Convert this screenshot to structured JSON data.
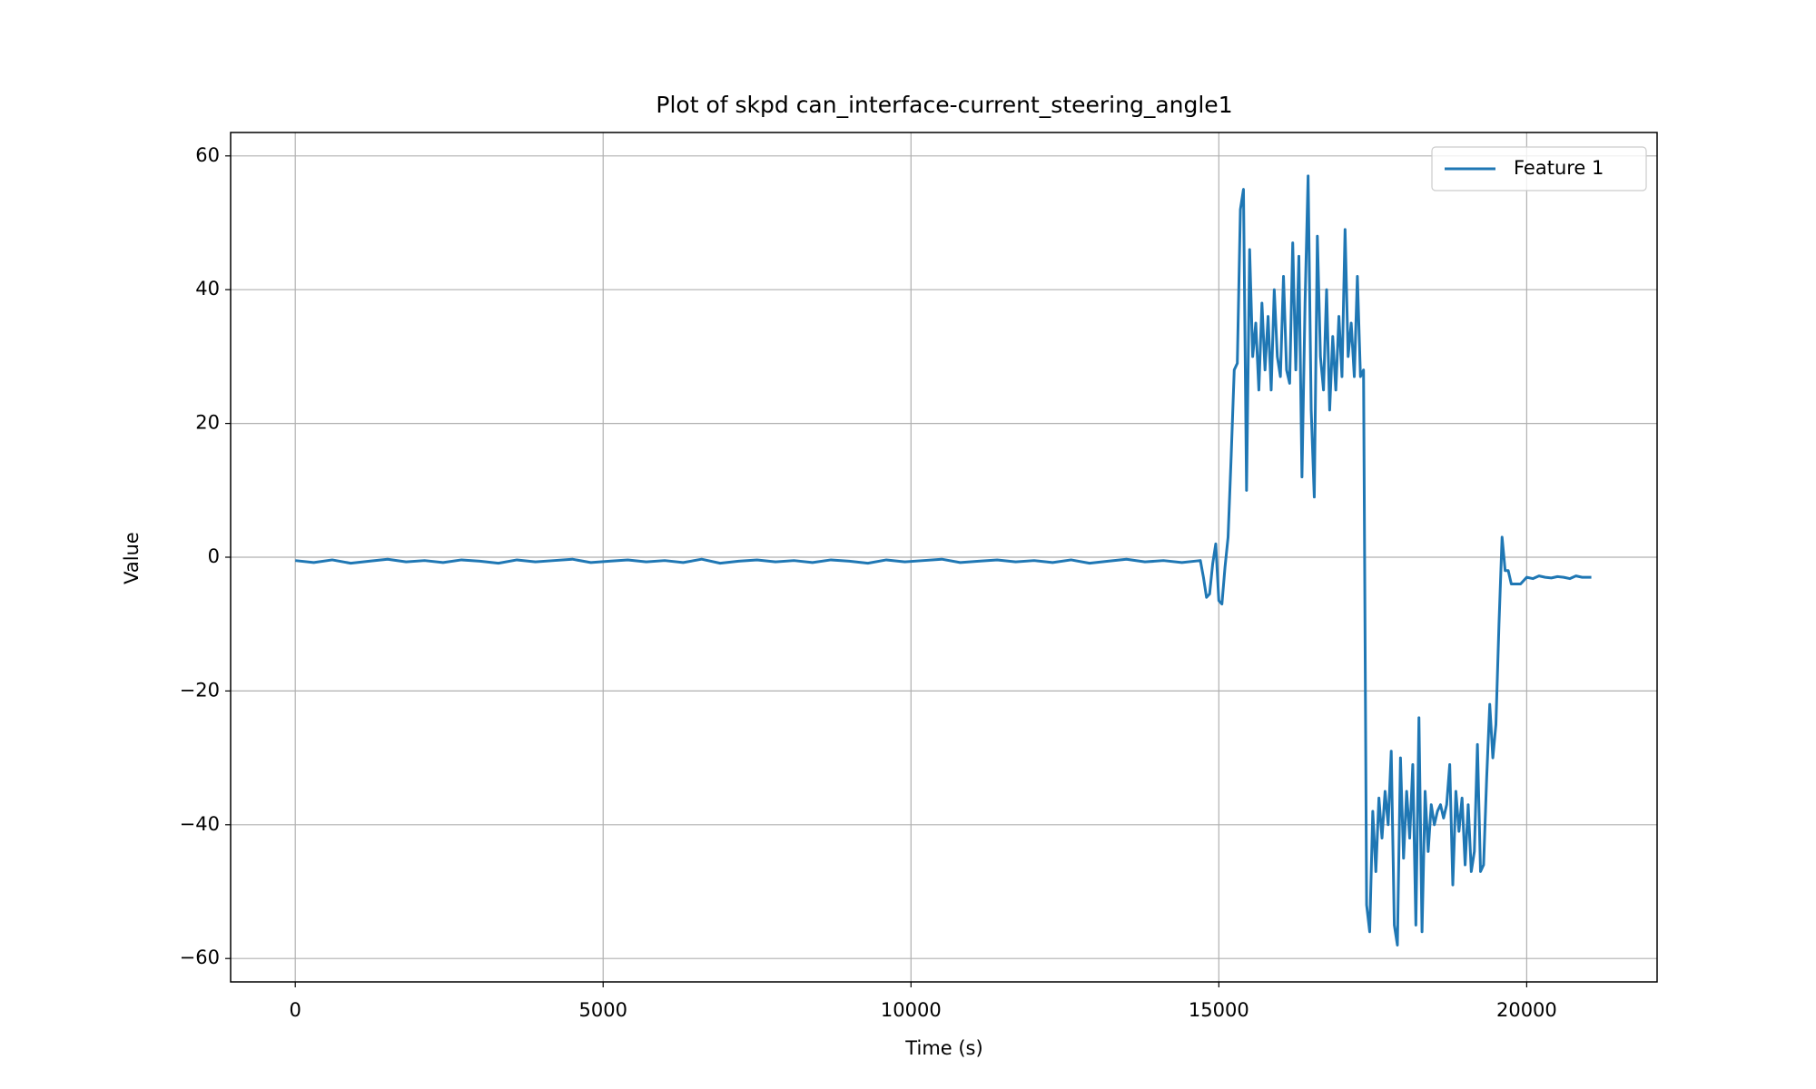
{
  "chart_data": {
    "type": "line",
    "title": "Plot of skpd can_interface-current_steering_angle1",
    "x_label": "Time (s)",
    "y_label": "Value",
    "x": [
      0,
      300,
      600,
      900,
      1200,
      1500,
      1800,
      2100,
      2400,
      2700,
      3000,
      3300,
      3600,
      3900,
      4200,
      4500,
      4800,
      5100,
      5400,
      5700,
      6000,
      6300,
      6600,
      6900,
      7200,
      7500,
      7800,
      8100,
      8400,
      8700,
      9000,
      9300,
      9600,
      9900,
      10200,
      10500,
      10800,
      11100,
      11400,
      11700,
      12000,
      12300,
      12600,
      12900,
      13200,
      13500,
      13800,
      14100,
      14400,
      14700,
      14750,
      14800,
      14850,
      14900,
      14950,
      15000,
      15050,
      15100,
      15150,
      15200,
      15250,
      15300,
      15350,
      15400,
      15450,
      15500,
      15550,
      15600,
      15650,
      15700,
      15750,
      15800,
      15850,
      15900,
      15950,
      16000,
      16050,
      16100,
      16150,
      16200,
      16250,
      16300,
      16350,
      16400,
      16450,
      16500,
      16550,
      16600,
      16650,
      16700,
      16750,
      16800,
      16850,
      16900,
      16950,
      17000,
      17050,
      17100,
      17150,
      17200,
      17250,
      17300,
      17350,
      17400,
      17450,
      17500,
      17550,
      17600,
      17650,
      17700,
      17750,
      17800,
      17850,
      17900,
      17950,
      18000,
      18050,
      18100,
      18150,
      18200,
      18250,
      18300,
      18350,
      18400,
      18450,
      18500,
      18550,
      18600,
      18650,
      18700,
      18750,
      18800,
      18850,
      18900,
      18950,
      19000,
      19050,
      19100,
      19150,
      19200,
      19250,
      19300,
      19350,
      19400,
      19450,
      19500,
      19550,
      19600,
      19650,
      19700,
      19750,
      19800,
      19900,
      20000,
      20100,
      20200,
      20300,
      20400,
      20500,
      20600,
      20700,
      20800,
      20900,
      21000,
      21050
    ],
    "series": [
      {
        "name": "Feature 1",
        "color": "#1f77b4",
        "values": [
          -0.5,
          -0.8,
          -0.4,
          -0.9,
          -0.6,
          -0.3,
          -0.7,
          -0.5,
          -0.8,
          -0.4,
          -0.6,
          -0.9,
          -0.4,
          -0.7,
          -0.5,
          -0.3,
          -0.8,
          -0.6,
          -0.4,
          -0.7,
          -0.5,
          -0.8,
          -0.3,
          -0.9,
          -0.6,
          -0.4,
          -0.7,
          -0.5,
          -0.8,
          -0.4,
          -0.6,
          -0.9,
          -0.4,
          -0.7,
          -0.5,
          -0.3,
          -0.8,
          -0.6,
          -0.4,
          -0.7,
          -0.5,
          -0.8,
          -0.4,
          -0.9,
          -0.6,
          -0.3,
          -0.7,
          -0.5,
          -0.8,
          -0.5,
          -3,
          -6,
          -5.5,
          -1,
          2,
          -6.5,
          -7,
          -1.5,
          3,
          15,
          28,
          29,
          52,
          55,
          10,
          46,
          30,
          35,
          25,
          38,
          28,
          36,
          25,
          40,
          30,
          27,
          42,
          28,
          26,
          47,
          28,
          45,
          12,
          38,
          57,
          22,
          9,
          48,
          30,
          25,
          40,
          22,
          33,
          25,
          36,
          27,
          49,
          30,
          35,
          27,
          42,
          27,
          28,
          -52,
          -56,
          -38,
          -47,
          -36,
          -42,
          -35,
          -40,
          -29,
          -55,
          -58,
          -30,
          -45,
          -35,
          -42,
          -31,
          -55,
          -24,
          -56,
          -35,
          -44,
          -37,
          -40,
          -38,
          -37,
          -39,
          -37,
          -31,
          -49,
          -35,
          -41,
          -36,
          -46,
          -37,
          -47,
          -44,
          -28,
          -47,
          -46,
          -33,
          -22,
          -30,
          -25,
          -10,
          3,
          -2,
          -2,
          -4,
          -4,
          -4,
          -3,
          -3.2,
          -2.8,
          -3,
          -3.1,
          -2.9,
          -3,
          -3.2,
          -2.8,
          -3,
          -3,
          -3
        ]
      }
    ],
    "xlim": [
      -1050,
      22118
    ],
    "ylim": [
      -63.5,
      63.5
    ],
    "xticks": [
      0,
      5000,
      10000,
      15000,
      20000
    ],
    "yticks": [
      {
        "value": -60,
        "label": "−60"
      },
      {
        "value": -40,
        "label": "−40"
      },
      {
        "value": -20,
        "label": "−20"
      },
      0,
      20,
      40,
      60
    ],
    "grid": true,
    "legend": "upper right"
  }
}
